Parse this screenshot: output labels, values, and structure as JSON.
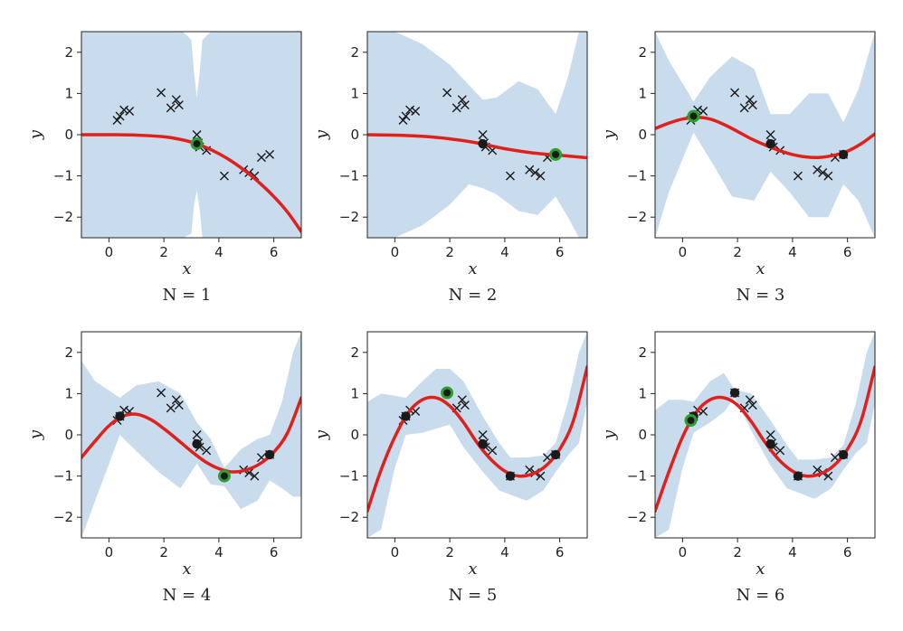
{
  "colors": {
    "band": "#c9dcee",
    "mean": "#e0201b",
    "observed": "#1a1a1a",
    "candidate": "#1a1a1a",
    "highlight_ring": "#2ca02c"
  },
  "chart_data": [
    {
      "type": "line",
      "title": "N = 1",
      "xlabel": "x",
      "ylabel": "y",
      "xlim": [
        -1,
        7
      ],
      "ylim": [
        -2.5,
        2.5
      ],
      "xticks": [
        "0",
        "2",
        "4",
        "6"
      ],
      "yticks": [
        "−2",
        "−1",
        "0",
        "1",
        "2"
      ],
      "grid": false,
      "candidates": {
        "x": [
          0.3,
          0.4,
          0.55,
          0.75,
          1.9,
          2.25,
          2.45,
          2.55,
          3.2,
          3.25,
          3.3,
          3.55,
          4.2,
          4.9,
          5.1,
          5.3,
          5.55,
          5.85
        ],
        "y": [
          0.35,
          0.45,
          0.6,
          0.57,
          1.02,
          0.65,
          0.85,
          0.72,
          0.0,
          -0.2,
          -0.3,
          -0.38,
          -1.0,
          -0.85,
          -0.92,
          -1.0,
          -0.55,
          -0.48
        ]
      },
      "observed": {
        "x": [],
        "y": []
      },
      "new_point": {
        "x": 3.2,
        "y": -0.22
      },
      "mean": {
        "x": [
          -1,
          0,
          1,
          2,
          2.5,
          3,
          3.5,
          4,
          4.5,
          5,
          5.5,
          6,
          6.5,
          7
        ],
        "y": [
          0.0,
          0.0,
          -0.01,
          -0.05,
          -0.1,
          -0.18,
          -0.3,
          -0.46,
          -0.66,
          -0.9,
          -1.18,
          -1.5,
          -1.88,
          -2.35
        ]
      },
      "band_upper": {
        "x": [
          -1,
          0,
          1,
          2,
          2.7,
          3.0,
          3.1,
          3.2,
          3.3,
          3.4,
          3.7,
          4.5,
          5.5,
          6.5,
          7
        ],
        "y": [
          2.5,
          2.5,
          2.5,
          2.5,
          2.5,
          2.3,
          1.5,
          0.9,
          1.5,
          2.3,
          2.5,
          2.5,
          2.5,
          2.5,
          2.5
        ]
      },
      "band_lower": {
        "x": [
          -1,
          0,
          1,
          2,
          2.7,
          3.0,
          3.1,
          3.2,
          3.3,
          3.4,
          3.7,
          4.5,
          5.5,
          6.5,
          7
        ],
        "y": [
          -2.5,
          -2.5,
          -2.5,
          -2.5,
          -2.5,
          -2.4,
          -1.7,
          -1.35,
          -1.8,
          -2.5,
          -2.5,
          -2.5,
          -2.5,
          -2.5,
          -2.5
        ]
      }
    },
    {
      "type": "line",
      "title": "N = 2",
      "xlabel": "x",
      "ylabel": "y",
      "xlim": [
        -1,
        7
      ],
      "ylim": [
        -2.5,
        2.5
      ],
      "xticks": [
        "0",
        "2",
        "4",
        "6"
      ],
      "yticks": [
        "−2",
        "−1",
        "0",
        "1",
        "2"
      ],
      "grid": false,
      "candidates": {
        "x": [
          0.3,
          0.4,
          0.55,
          0.75,
          1.9,
          2.25,
          2.45,
          2.55,
          3.2,
          3.25,
          3.3,
          3.55,
          4.2,
          4.9,
          5.1,
          5.3,
          5.55,
          5.85
        ],
        "y": [
          0.35,
          0.45,
          0.6,
          0.57,
          1.02,
          0.65,
          0.85,
          0.72,
          0.0,
          -0.2,
          -0.3,
          -0.38,
          -1.0,
          -0.85,
          -0.92,
          -1.0,
          -0.55,
          -0.48
        ]
      },
      "observed": {
        "x": [
          3.2
        ],
        "y": [
          -0.22
        ]
      },
      "new_point": {
        "x": 5.85,
        "y": -0.48
      },
      "mean": {
        "x": [
          -1,
          0,
          1,
          2,
          3,
          3.5,
          4,
          5,
          6,
          7
        ],
        "y": [
          0.0,
          -0.01,
          -0.04,
          -0.1,
          -0.2,
          -0.27,
          -0.34,
          -0.44,
          -0.5,
          -0.56
        ]
      },
      "band_upper": {
        "x": [
          -1,
          0,
          1,
          2,
          2.7,
          3.2,
          3.7,
          4.5,
          5.2,
          5.85,
          6.3,
          6.7,
          7
        ],
        "y": [
          2.5,
          2.5,
          2.2,
          1.7,
          1.2,
          0.85,
          0.9,
          1.3,
          1.1,
          0.5,
          1.4,
          2.5,
          2.5
        ]
      },
      "band_lower": {
        "x": [
          -1,
          0,
          1,
          2,
          2.7,
          3.2,
          3.7,
          4.5,
          5.2,
          5.85,
          6.3,
          6.7,
          7
        ],
        "y": [
          -2.5,
          -2.5,
          -2.2,
          -1.7,
          -1.2,
          -1.3,
          -1.45,
          -1.85,
          -1.95,
          -1.5,
          -2.0,
          -2.5,
          -2.5
        ]
      }
    },
    {
      "type": "line",
      "title": "N = 3",
      "xlabel": "x",
      "ylabel": "y",
      "xlim": [
        -1,
        7
      ],
      "ylim": [
        -2.5,
        2.5
      ],
      "xticks": [
        "0",
        "2",
        "4",
        "6"
      ],
      "yticks": [
        "−2",
        "−1",
        "0",
        "1",
        "2"
      ],
      "grid": false,
      "candidates": {
        "x": [
          0.3,
          0.4,
          0.55,
          0.75,
          1.9,
          2.25,
          2.45,
          2.55,
          3.2,
          3.25,
          3.3,
          3.55,
          4.2,
          4.9,
          5.1,
          5.3,
          5.55,
          5.85
        ],
        "y": [
          0.35,
          0.45,
          0.6,
          0.57,
          1.02,
          0.65,
          0.85,
          0.72,
          0.0,
          -0.2,
          -0.3,
          -0.38,
          -1.0,
          -0.85,
          -0.92,
          -1.0,
          -0.55,
          -0.48
        ]
      },
      "observed": {
        "x": [
          3.2,
          5.85
        ],
        "y": [
          -0.22,
          -0.48
        ]
      },
      "new_point": {
        "x": 0.4,
        "y": 0.45
      },
      "mean": {
        "x": [
          -1,
          -0.5,
          0,
          0.5,
          1,
          1.5,
          2,
          2.5,
          3,
          3.5,
          4,
          4.5,
          5,
          5.5,
          6,
          6.5,
          7
        ],
        "y": [
          0.15,
          0.28,
          0.38,
          0.42,
          0.38,
          0.25,
          0.08,
          -0.1,
          -0.25,
          -0.38,
          -0.48,
          -0.54,
          -0.55,
          -0.5,
          -0.4,
          -0.22,
          0.02
        ]
      },
      "band_upper": {
        "x": [
          -1,
          -0.5,
          0.4,
          1,
          1.8,
          2.6,
          3.2,
          3.9,
          4.6,
          5.3,
          5.85,
          6.4,
          7
        ],
        "y": [
          2.5,
          1.8,
          0.8,
          1.4,
          1.9,
          1.6,
          0.5,
          0.5,
          1.0,
          1.0,
          0.3,
          1.1,
          2.5
        ]
      },
      "band_lower": {
        "x": [
          -1,
          -0.5,
          0.4,
          1,
          1.8,
          2.6,
          3.2,
          3.9,
          4.6,
          5.3,
          5.85,
          6.4,
          7
        ],
        "y": [
          -2.5,
          -1.4,
          0.05,
          -0.6,
          -1.5,
          -1.6,
          -0.9,
          -1.4,
          -2.0,
          -2.0,
          -1.2,
          -1.6,
          -2.5
        ]
      }
    },
    {
      "type": "line",
      "title": "N = 4",
      "xlabel": "x",
      "ylabel": "y",
      "xlim": [
        -1,
        7
      ],
      "ylim": [
        -2.5,
        2.5
      ],
      "xticks": [
        "0",
        "2",
        "4",
        "6"
      ],
      "yticks": [
        "−2",
        "−1",
        "0",
        "1",
        "2"
      ],
      "grid": false,
      "candidates": {
        "x": [
          0.3,
          0.4,
          0.55,
          0.75,
          1.9,
          2.25,
          2.45,
          2.55,
          3.2,
          3.25,
          3.3,
          3.55,
          4.2,
          4.9,
          5.1,
          5.3,
          5.55,
          5.85
        ],
        "y": [
          0.35,
          0.45,
          0.6,
          0.57,
          1.02,
          0.65,
          0.85,
          0.72,
          0.0,
          -0.2,
          -0.3,
          -0.38,
          -1.0,
          -0.85,
          -0.92,
          -1.0,
          -0.55,
          -0.48
        ]
      },
      "observed": {
        "x": [
          0.4,
          3.2,
          5.85
        ],
        "y": [
          0.45,
          -0.22,
          -0.48
        ]
      },
      "new_point": {
        "x": 4.2,
        "y": -1.0
      },
      "mean": {
        "x": [
          -1,
          -0.5,
          0,
          0.5,
          1,
          1.5,
          2,
          2.5,
          3,
          3.5,
          4,
          4.5,
          5,
          5.5,
          6,
          6.5,
          7
        ],
        "y": [
          -0.55,
          -0.15,
          0.22,
          0.45,
          0.5,
          0.38,
          0.15,
          -0.12,
          -0.4,
          -0.65,
          -0.82,
          -0.9,
          -0.85,
          -0.7,
          -0.42,
          0.05,
          0.9
        ]
      },
      "band_upper": {
        "x": [
          -1,
          -0.5,
          0.4,
          1,
          1.8,
          2.6,
          3.2,
          3.7,
          4.2,
          4.8,
          5.4,
          5.85,
          6.3,
          6.7,
          7
        ],
        "y": [
          1.8,
          1.3,
          0.9,
          1.2,
          1.3,
          1.0,
          0.3,
          -0.1,
          -0.8,
          -0.35,
          -0.1,
          0.0,
          0.8,
          2.0,
          2.5
        ]
      },
      "band_lower": {
        "x": [
          -1,
          -0.5,
          0.4,
          1,
          1.8,
          2.6,
          3.2,
          3.7,
          4.2,
          4.8,
          5.4,
          5.85,
          6.3,
          6.7,
          7
        ],
        "y": [
          -2.5,
          -1.6,
          0.0,
          -0.4,
          -0.9,
          -1.3,
          -0.7,
          -1.2,
          -1.25,
          -1.8,
          -1.6,
          -1.1,
          -1.3,
          -1.5,
          -1.5
        ]
      }
    },
    {
      "type": "line",
      "title": "N = 5",
      "xlabel": "x",
      "ylabel": "y",
      "xlim": [
        -1,
        7
      ],
      "ylim": [
        -2.5,
        2.5
      ],
      "xticks": [
        "0",
        "2",
        "4",
        "6"
      ],
      "yticks": [
        "−2",
        "−1",
        "0",
        "1",
        "2"
      ],
      "grid": false,
      "candidates": {
        "x": [
          0.3,
          0.4,
          0.55,
          0.75,
          1.9,
          2.25,
          2.45,
          2.55,
          3.2,
          3.25,
          3.3,
          3.55,
          4.2,
          4.9,
          5.1,
          5.3,
          5.55,
          5.85
        ],
        "y": [
          0.35,
          0.45,
          0.6,
          0.57,
          1.02,
          0.65,
          0.85,
          0.72,
          0.0,
          -0.2,
          -0.3,
          -0.38,
          -1.0,
          -0.85,
          -0.92,
          -1.0,
          -0.55,
          -0.48
        ]
      },
      "observed": {
        "x": [
          0.4,
          3.2,
          4.2,
          5.85
        ],
        "y": [
          0.45,
          -0.22,
          -1.0,
          -0.48
        ]
      },
      "new_point": {
        "x": 1.9,
        "y": 1.02
      },
      "mean": {
        "x": [
          -1,
          -0.5,
          0,
          0.5,
          1,
          1.5,
          2,
          2.5,
          3,
          3.5,
          4,
          4.5,
          5,
          5.5,
          6,
          6.5,
          7
        ],
        "y": [
          -1.85,
          -0.85,
          -0.05,
          0.55,
          0.85,
          0.9,
          0.7,
          0.3,
          -0.2,
          -0.6,
          -0.88,
          -1.0,
          -0.95,
          -0.75,
          -0.35,
          0.35,
          1.65
        ]
      },
      "band_upper": {
        "x": [
          -1,
          -0.5,
          0,
          0.4,
          1,
          1.5,
          2,
          2.5,
          3.2,
          3.8,
          4.2,
          4.8,
          5.4,
          5.85,
          6.3,
          6.7,
          7
        ],
        "y": [
          0.8,
          1.0,
          0.95,
          0.9,
          1.3,
          1.6,
          1.6,
          1.3,
          0.45,
          -0.2,
          -0.55,
          -0.55,
          -0.5,
          -0.2,
          0.8,
          2.0,
          2.5
        ]
      },
      "band_lower": {
        "x": [
          -1,
          -0.5,
          0,
          0.4,
          1,
          1.5,
          2,
          2.5,
          3.2,
          3.8,
          4.2,
          4.8,
          5.4,
          5.85,
          6.3,
          6.7,
          7
        ],
        "y": [
          -2.5,
          -2.3,
          -0.8,
          0.0,
          0.05,
          0.15,
          0.25,
          -0.3,
          -0.9,
          -1.35,
          -1.45,
          -1.6,
          -1.35,
          -0.9,
          -0.5,
          -0.2,
          0.8
        ]
      }
    },
    {
      "type": "line",
      "title": "N = 6",
      "xlabel": "x",
      "ylabel": "y",
      "xlim": [
        -1,
        7
      ],
      "ylim": [
        -2.5,
        2.5
      ],
      "xticks": [
        "0",
        "2",
        "4",
        "6"
      ],
      "yticks": [
        "−2",
        "−1",
        "0",
        "1",
        "2"
      ],
      "grid": false,
      "candidates": {
        "x": [
          0.3,
          0.4,
          0.55,
          0.75,
          1.9,
          2.25,
          2.45,
          2.55,
          3.2,
          3.25,
          3.3,
          3.55,
          4.2,
          4.9,
          5.1,
          5.3,
          5.55,
          5.85
        ],
        "y": [
          0.35,
          0.45,
          0.6,
          0.57,
          1.02,
          0.65,
          0.85,
          0.72,
          0.0,
          -0.2,
          -0.3,
          -0.38,
          -1.0,
          -0.85,
          -0.92,
          -1.0,
          -0.55,
          -0.48
        ]
      },
      "observed": {
        "x": [
          0.4,
          1.9,
          3.2,
          4.2,
          5.85
        ],
        "y": [
          0.45,
          1.02,
          -0.22,
          -1.0,
          -0.48
        ]
      },
      "new_point": {
        "x": 0.3,
        "y": 0.35
      },
      "mean": {
        "x": [
          -1,
          -0.5,
          0,
          0.5,
          1,
          1.5,
          2,
          2.5,
          3,
          3.5,
          4,
          4.5,
          5,
          5.5,
          6,
          6.5,
          7
        ],
        "y": [
          -1.85,
          -0.9,
          -0.05,
          0.55,
          0.85,
          0.9,
          0.72,
          0.32,
          -0.18,
          -0.6,
          -0.88,
          -1.0,
          -0.95,
          -0.75,
          -0.35,
          0.35,
          1.65
        ]
      },
      "band_upper": {
        "x": [
          -1,
          -0.5,
          0,
          0.4,
          1,
          1.5,
          1.9,
          2.5,
          3.2,
          3.8,
          4.2,
          4.8,
          5.4,
          5.85,
          6.3,
          6.7,
          7
        ],
        "y": [
          0.6,
          0.85,
          0.85,
          0.8,
          1.3,
          1.5,
          1.1,
          1.0,
          0.35,
          -0.25,
          -0.6,
          -0.6,
          -0.55,
          -0.25,
          0.75,
          2.0,
          2.5
        ]
      },
      "band_lower": {
        "x": [
          -1,
          -0.5,
          0,
          0.4,
          1,
          1.5,
          1.9,
          2.5,
          3.2,
          3.8,
          4.2,
          4.8,
          5.4,
          5.85,
          6.3,
          6.7,
          7
        ],
        "y": [
          -2.5,
          -2.3,
          -0.8,
          0.05,
          0.3,
          0.55,
          0.9,
          0.1,
          -0.75,
          -1.3,
          -1.4,
          -1.55,
          -1.3,
          -0.85,
          -0.45,
          -0.2,
          0.75
        ]
      }
    }
  ]
}
